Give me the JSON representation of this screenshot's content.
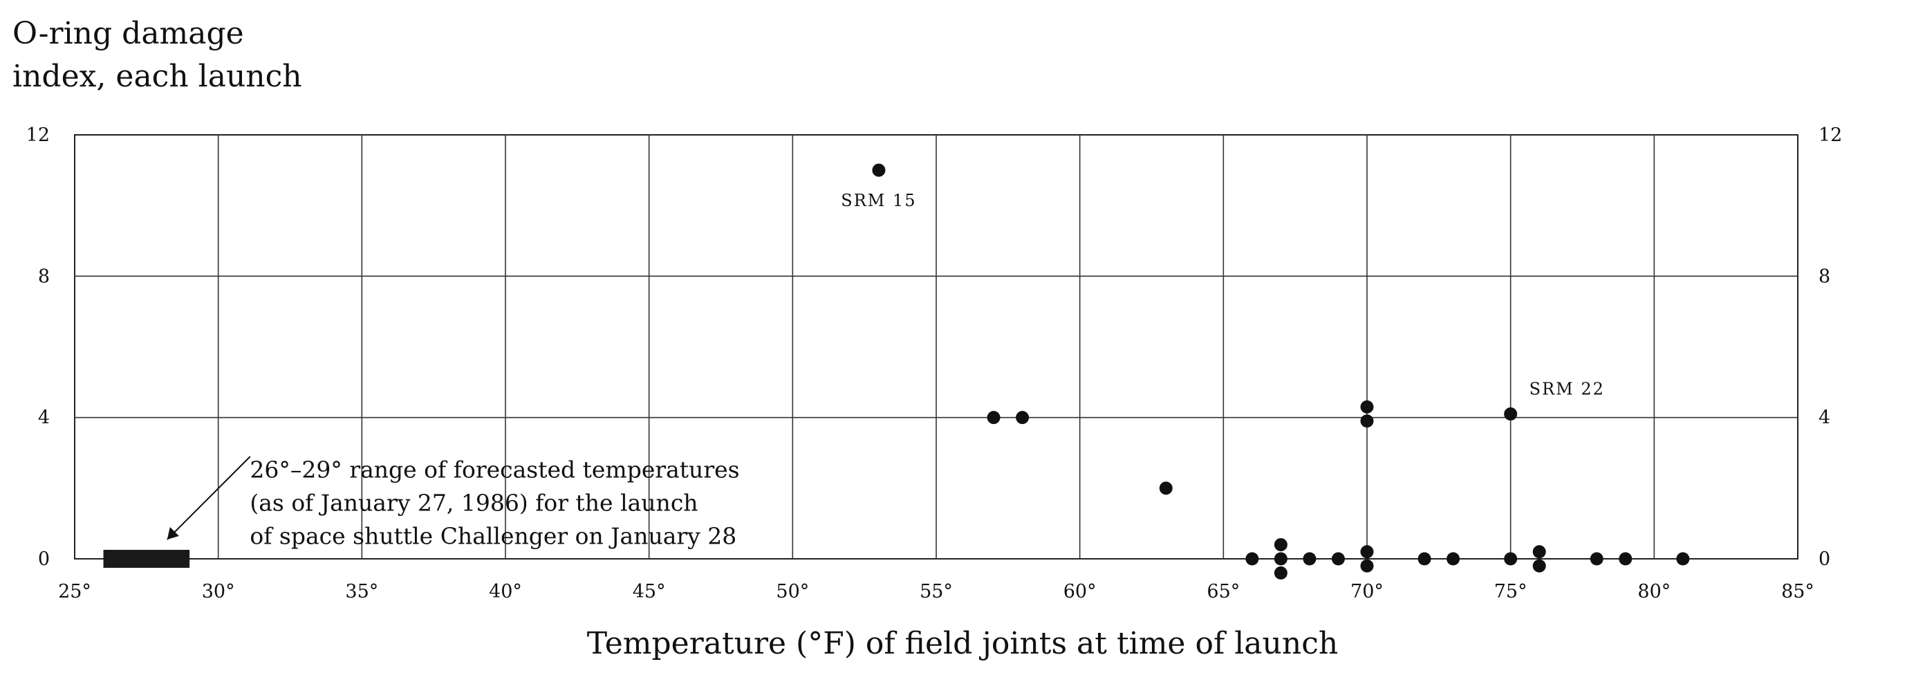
{
  "chart_data": {
    "type": "scatter",
    "title": "",
    "ylabel_lines": [
      "O-ring damage",
      "index, each launch"
    ],
    "xlabel": "Temperature (°F) of field joints at time of launch",
    "xlim": [
      25,
      85
    ],
    "ylim": [
      0,
      12
    ],
    "x_ticks": [
      25,
      30,
      35,
      40,
      45,
      50,
      55,
      60,
      65,
      70,
      75,
      80,
      85
    ],
    "x_tick_labels": [
      "25°",
      "30°",
      "35°",
      "40°",
      "45°",
      "50°",
      "55°",
      "60°",
      "65°",
      "70°",
      "75°",
      "80°",
      "85°"
    ],
    "y_ticks": [
      0,
      4,
      8,
      12
    ],
    "y_tick_labels": [
      "0",
      "4",
      "8",
      "12"
    ],
    "grid": true,
    "points": [
      {
        "x": 53,
        "y": 11
      },
      {
        "x": 57,
        "y": 4
      },
      {
        "x": 58,
        "y": 4
      },
      {
        "x": 63,
        "y": 2
      },
      {
        "x": 70,
        "y": 4.3
      },
      {
        "x": 70,
        "y": 3.9
      },
      {
        "x": 75,
        "y": 4.1
      },
      {
        "x": 66,
        "y": 0
      },
      {
        "x": 67,
        "y": 0.4
      },
      {
        "x": 67,
        "y": 0
      },
      {
        "x": 67,
        "y": -0.4
      },
      {
        "x": 68,
        "y": 0
      },
      {
        "x": 69,
        "y": 0
      },
      {
        "x": 70,
        "y": 0.2
      },
      {
        "x": 70,
        "y": -0.2
      },
      {
        "x": 72,
        "y": 0
      },
      {
        "x": 73,
        "y": 0
      },
      {
        "x": 75,
        "y": 0
      },
      {
        "x": 76,
        "y": 0.2
      },
      {
        "x": 76,
        "y": -0.2
      },
      {
        "x": 78,
        "y": 0
      },
      {
        "x": 79,
        "y": 0
      },
      {
        "x": 81,
        "y": 0
      }
    ],
    "point_labels": [
      {
        "text": "SRM 15",
        "x": 53,
        "y": 11
      },
      {
        "text": "SRM 22",
        "x": 75,
        "y": 4.1
      }
    ],
    "forecast_range": {
      "from": 26,
      "to": 29
    },
    "annotation_lines": [
      "26°–29° range of forecasted temperatures",
      "(as of January 27, 1986) for the launch",
      "of space shuttle Challenger on January 28"
    ]
  }
}
